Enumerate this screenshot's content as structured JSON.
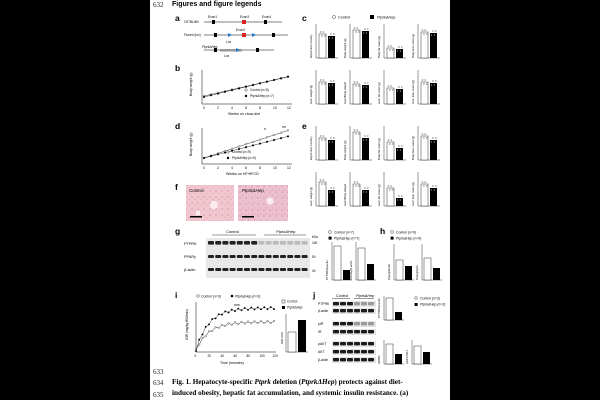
{
  "line_numbers": [
    "632",
    "633",
    "634",
    "635"
  ],
  "heading": "Figures and figure legends",
  "panel_labels": [
    "a",
    "b",
    "c",
    "d",
    "e",
    "f",
    "g",
    "h",
    "i",
    "j"
  ],
  "panel_a": {
    "rows": [
      "C57BL/6N",
      "Floxed (lox)",
      "PtprkΔHep"
    ],
    "exons": [
      "Exon1",
      "Exon2",
      "Exon3",
      "Exon4"
    ],
    "lox": "Lox"
  },
  "panel_b": {
    "xlabel": "Weeks on chow diet",
    "ylabel": "Body weight (g)",
    "legend": [
      "Control (n=5)",
      "PtprkΔHep (n=7)"
    ],
    "xticks": [
      "0",
      "2",
      "4",
      "6",
      "8",
      "10",
      "12"
    ]
  },
  "panel_d": {
    "xlabel": "Weeks on HF/HFCD",
    "ylabel": "Body weight (g)",
    "legend": [
      "Control (n=9)",
      "PtprkΔHep (n=9)"
    ],
    "xticks": [
      "0",
      "2",
      "4",
      "6",
      "8",
      "10",
      "12"
    ]
  },
  "panel_c_legend": [
    "Control",
    "PtprkΔHep"
  ],
  "panel_c_ylabels": [
    "Glycemia (mmol/L)",
    "Body weight (g)",
    "Body fat mass (g)",
    "Body lean mass (g)",
    "Liver weight (g)",
    "Liver/Body weight",
    "Liver fat mass (g)",
    "Liver lean mass (g)"
  ],
  "panel_e_ylabels": [
    "Glycemia (mmol/L)",
    "Body weight (g)",
    "Body fat mass (g)",
    "Body lean mass (g)",
    "Liver weight (g)",
    "Liver/Body weight",
    "Liver fat mass (g)",
    "Liver lean mass (g)"
  ],
  "panel_f": {
    "left": "Control",
    "right": "PtprkΔHep"
  },
  "panel_g": {
    "groups": [
      "Control",
      "PtprkΔHep"
    ],
    "rows": [
      "PTPRK",
      "PPARγ",
      "β-actin"
    ],
    "kda": [
      "kDa",
      "150",
      "50",
      "40"
    ],
    "legend": [
      "Control (n=7)",
      "PtprkΔHep (n=7)"
    ],
    "ylabels": [
      "PTPRK/β-actin",
      "PPARγ/β-actin"
    ]
  },
  "panel_h": {
    "legend": [
      "Control (n=9)",
      "PtprkΔHep (n=9)"
    ],
    "ylabels": [
      "Pparg/Gusb",
      "Pparg/Hprt"
    ]
  },
  "panel_i": {
    "legend": [
      "Control (n=3)",
      "PtprkΔHep (n=3)"
    ],
    "ylabel": "GIR (mg/kg BW/min)",
    "xlabel": "Time (minutes)",
    "xticks": [
      "0",
      "20",
      "40",
      "60",
      "80",
      "100",
      "120"
    ],
    "bar_legend": [
      "Control",
      "PtprkΔHep"
    ],
    "bar_ylabel": "GIR AUC"
  },
  "panel_j": {
    "groups": [
      "Control",
      "PtprkΔHep"
    ],
    "rows": [
      "PTPRK",
      "β-actin",
      "pIR",
      "IR",
      "pAKT",
      "AKT",
      "β-actin"
    ],
    "legend": [
      "Control (n=3)",
      "PtprkΔHep (n=3)"
    ],
    "ylabels": [
      "PTPRK/β-actin",
      "pIR/IR",
      "pAKT/AKT"
    ]
  },
  "caption": {
    "line1_pre": "Fig. 1. Hepatocyte-specific ",
    "line1_gene": "Ptprk",
    "line1_mid": " deletion (",
    "line1_sym": "PtprkΔHep",
    "line1_post": ") protects against diet-",
    "line2": "induced obesity, hepatic fat accumulation, and systemic insulin resistance. (a)"
  }
}
